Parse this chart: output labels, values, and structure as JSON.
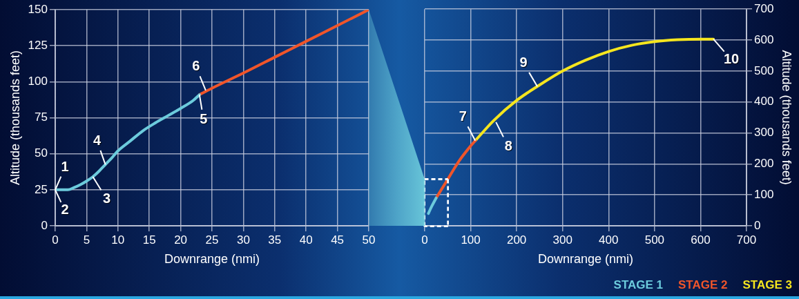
{
  "chart_data": [
    {
      "type": "line",
      "xlabel": "Downrange (nmi)",
      "ylabel": "Altitude (thousands feet)",
      "xlim": [
        0,
        50
      ],
      "ylim": [
        0,
        150
      ],
      "xticks": [
        0,
        5,
        10,
        15,
        20,
        25,
        30,
        35,
        40,
        45,
        50
      ],
      "yticks": [
        0,
        25,
        50,
        75,
        100,
        125,
        150
      ],
      "grid": true,
      "legend": false,
      "series": [
        {
          "color": "#6ccbdc",
          "x": [
            0,
            1,
            2,
            3,
            4,
            5,
            6,
            7,
            8,
            9,
            10,
            12,
            14,
            16,
            18,
            20,
            22,
            23
          ],
          "values": [
            25,
            25,
            25,
            26.5,
            28.5,
            31,
            34,
            38,
            42.5,
            47,
            52,
            59,
            66,
            71.5,
            76.5,
            81.5,
            87,
            91
          ]
        },
        {
          "color": "#f0552a",
          "x": [
            23,
            25,
            30,
            35,
            40,
            45,
            50
          ],
          "values": [
            91,
            95.5,
            106,
            117,
            128,
            139,
            150
          ]
        }
      ],
      "annotations": [
        {
          "text": "1",
          "x": 0,
          "y": 25
        },
        {
          "text": "2",
          "x": 0,
          "y": 25
        },
        {
          "text": "3",
          "x": 6,
          "y": 34
        },
        {
          "text": "4",
          "x": 8,
          "y": 42.5
        },
        {
          "text": "5",
          "x": 23,
          "y": 91
        },
        {
          "text": "6",
          "x": 24,
          "y": 94
        }
      ]
    },
    {
      "type": "line",
      "xlabel": "Downrange (nmi)",
      "ylabel": "Altitude (thousands feet)",
      "xlim": [
        0,
        700
      ],
      "ylim": [
        0,
        700
      ],
      "xticks": [
        0,
        100,
        200,
        300,
        400,
        500,
        600,
        700
      ],
      "yticks": [
        0,
        100,
        200,
        300,
        400,
        500,
        600,
        700
      ],
      "grid": true,
      "legend": "bottom right",
      "series": [
        {
          "name": "STAGE 1",
          "color": "#6ccbdc",
          "x": [
            8,
            15,
            25
          ],
          "values": [
            40,
            62,
            90
          ]
        },
        {
          "name": "STAGE 2",
          "color": "#f0552a",
          "x": [
            25,
            50,
            75,
            100,
            110
          ],
          "values": [
            90,
            150,
            210,
            258,
            275
          ]
        },
        {
          "name": "STAGE 3",
          "color": "#f5e51e",
          "x": [
            110,
            150,
            200,
            250,
            300,
            350,
            400,
            450,
            500,
            550,
            600,
            628
          ],
          "values": [
            275,
            340,
            405,
            455,
            500,
            535,
            563,
            583,
            595,
            601,
            603,
            603
          ]
        }
      ],
      "annotations": [
        {
          "text": "7",
          "x": 110,
          "y": 275
        },
        {
          "text": "8",
          "x": 155,
          "y": 335
        },
        {
          "text": "9",
          "x": 245,
          "y": 450
        },
        {
          "text": "10",
          "x": 628,
          "y": 603
        }
      ]
    }
  ]
}
